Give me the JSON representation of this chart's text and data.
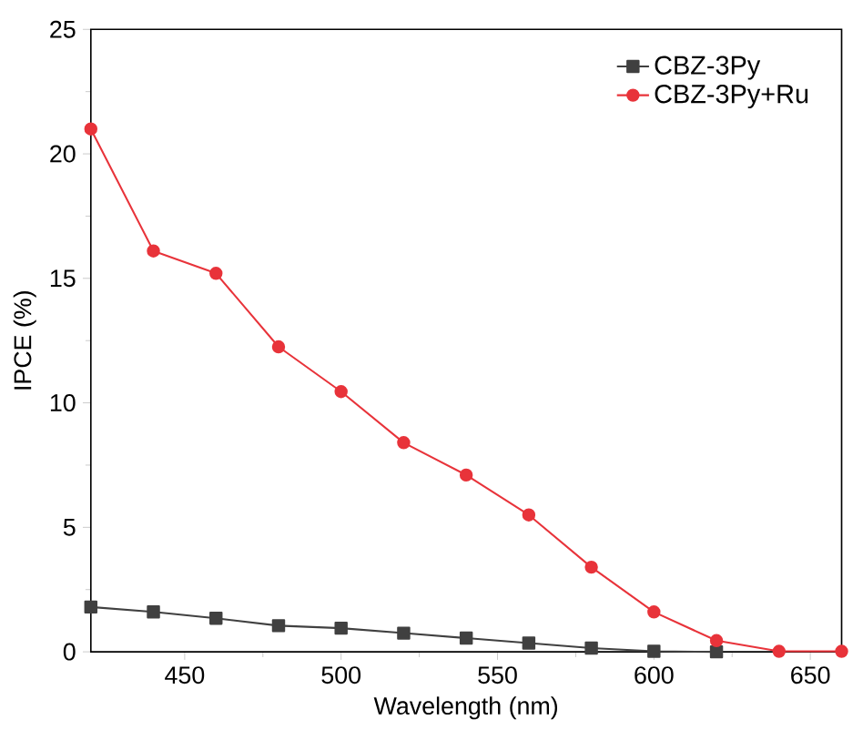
{
  "chart_data": {
    "type": "line",
    "xlabel": "Wavelength (nm)",
    "ylabel": "IPCE (%)",
    "xlim": [
      420,
      660
    ],
    "ylim": [
      0,
      25
    ],
    "xticks": [
      450,
      500,
      550,
      600,
      650
    ],
    "yticks": [
      0,
      5,
      10,
      15,
      20,
      25
    ],
    "legend": "top right",
    "grid": false,
    "series": [
      {
        "name": "CBZ-3Py",
        "color": "#404040",
        "marker": "square",
        "x": [
          420,
          440,
          460,
          480,
          500,
          520,
          540,
          560,
          580,
          600,
          620
        ],
        "values": [
          1.8,
          1.6,
          1.35,
          1.05,
          0.95,
          0.75,
          0.55,
          0.35,
          0.15,
          0.02,
          0
        ]
      },
      {
        "name": "CBZ-3Py+Ru",
        "color": "#e8333a",
        "marker": "circle",
        "x": [
          420,
          440,
          460,
          480,
          500,
          520,
          540,
          560,
          580,
          600,
          620,
          640,
          660
        ],
        "values": [
          21,
          16.1,
          15.2,
          12.25,
          10.45,
          8.4,
          7.1,
          5.5,
          3.4,
          1.6,
          0.45,
          0.02,
          0.02
        ]
      }
    ]
  }
}
